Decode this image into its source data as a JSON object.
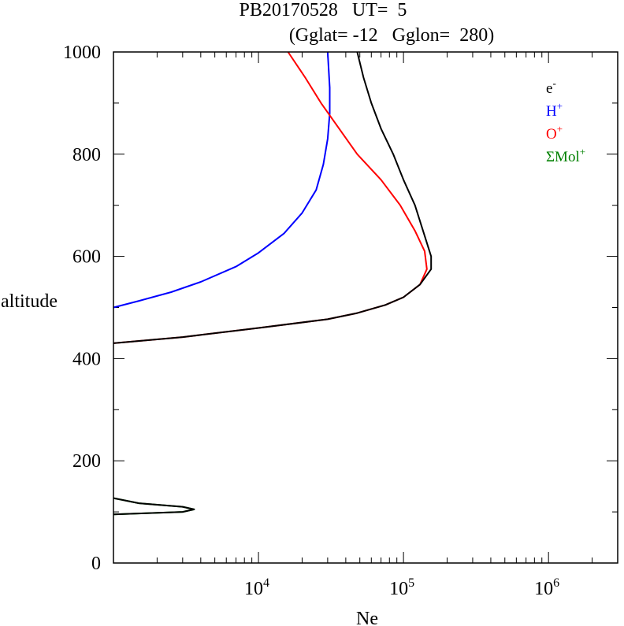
{
  "header": {
    "title_line1": "PB20170528   UT=  5",
    "title_line2": "(Gglat= -12   Gglon=  280)"
  },
  "chart_data": {
    "type": "line",
    "xlabel": "Ne",
    "ylabel": "altitude",
    "x_scale": "log",
    "xlim": [
      1000,
      3000000
    ],
    "ylim": [
      0,
      1000
    ],
    "y_ticks": [
      0,
      200,
      400,
      600,
      800,
      1000
    ],
    "y_tick_labels": [
      "0",
      "200",
      "400",
      "600",
      "800",
      "1000"
    ],
    "x_ticks": [
      10000,
      100000,
      1000000
    ],
    "x_tick_labels": [
      {
        "base": "10",
        "exp": "4"
      },
      {
        "base": "10",
        "exp": "5"
      },
      {
        "base": "10",
        "exp": "6"
      }
    ],
    "legend": {
      "placement": "top-right",
      "entries": [
        {
          "base": "e",
          "sup": "-",
          "color": "#000000"
        },
        {
          "base": "H",
          "sup": "+",
          "color": "#0000ff"
        },
        {
          "base": "O",
          "sup": "+",
          "color": "#ff0000"
        },
        {
          "base": "ΣMol",
          "sup": "+",
          "color": "#008000"
        }
      ]
    },
    "series": [
      {
        "key": "mol",
        "color": "#008000",
        "points": [
          [
            1000,
            95
          ],
          [
            3000,
            100
          ],
          [
            3600,
            105
          ],
          [
            3000,
            110
          ],
          [
            1500,
            117
          ],
          [
            1000,
            127
          ]
        ]
      },
      {
        "key": "H",
        "color": "#0000ff",
        "points": [
          [
            1000,
            500
          ],
          [
            1500,
            513
          ],
          [
            2500,
            530
          ],
          [
            4000,
            550
          ],
          [
            7000,
            580
          ],
          [
            10000,
            607
          ],
          [
            15000,
            645
          ],
          [
            20000,
            685
          ],
          [
            25000,
            730
          ],
          [
            28000,
            780
          ],
          [
            30000,
            830
          ],
          [
            31000,
            880
          ],
          [
            31000,
            930
          ],
          [
            30000,
            1000
          ]
        ]
      },
      {
        "key": "O",
        "color": "#ff0000",
        "points": [
          [
            1000,
            430
          ],
          [
            3000,
            442
          ],
          [
            10000,
            460
          ],
          [
            30000,
            477
          ],
          [
            48000,
            489
          ],
          [
            75000,
            505
          ],
          [
            100000,
            520
          ],
          [
            130000,
            545
          ],
          [
            145000,
            575
          ],
          [
            140000,
            610
          ],
          [
            120000,
            650
          ],
          [
            95000,
            700
          ],
          [
            70000,
            750
          ],
          [
            48000,
            800
          ],
          [
            36000,
            850
          ],
          [
            27000,
            900
          ],
          [
            21000,
            950
          ],
          [
            16000,
            1000
          ]
        ]
      },
      {
        "key": "e",
        "color": "#000000",
        "points": [
          [
            1000,
            430
          ],
          [
            3000,
            442
          ],
          [
            10000,
            460
          ],
          [
            30000,
            477
          ],
          [
            48000,
            489
          ],
          [
            75000,
            505
          ],
          [
            100000,
            520
          ],
          [
            130000,
            545
          ],
          [
            155000,
            575
          ],
          [
            155000,
            600
          ],
          [
            140000,
            640
          ],
          [
            120000,
            700
          ],
          [
            100000,
            750
          ],
          [
            85000,
            800
          ],
          [
            70000,
            850
          ],
          [
            60000,
            900
          ],
          [
            53000,
            950
          ],
          [
            48000,
            1000
          ]
        ]
      },
      {
        "key": "e_low",
        "color": "#000000",
        "points": [
          [
            1000,
            95
          ],
          [
            3000,
            100
          ],
          [
            3600,
            105
          ],
          [
            3000,
            110
          ],
          [
            1500,
            117
          ],
          [
            1000,
            127
          ]
        ]
      }
    ]
  }
}
